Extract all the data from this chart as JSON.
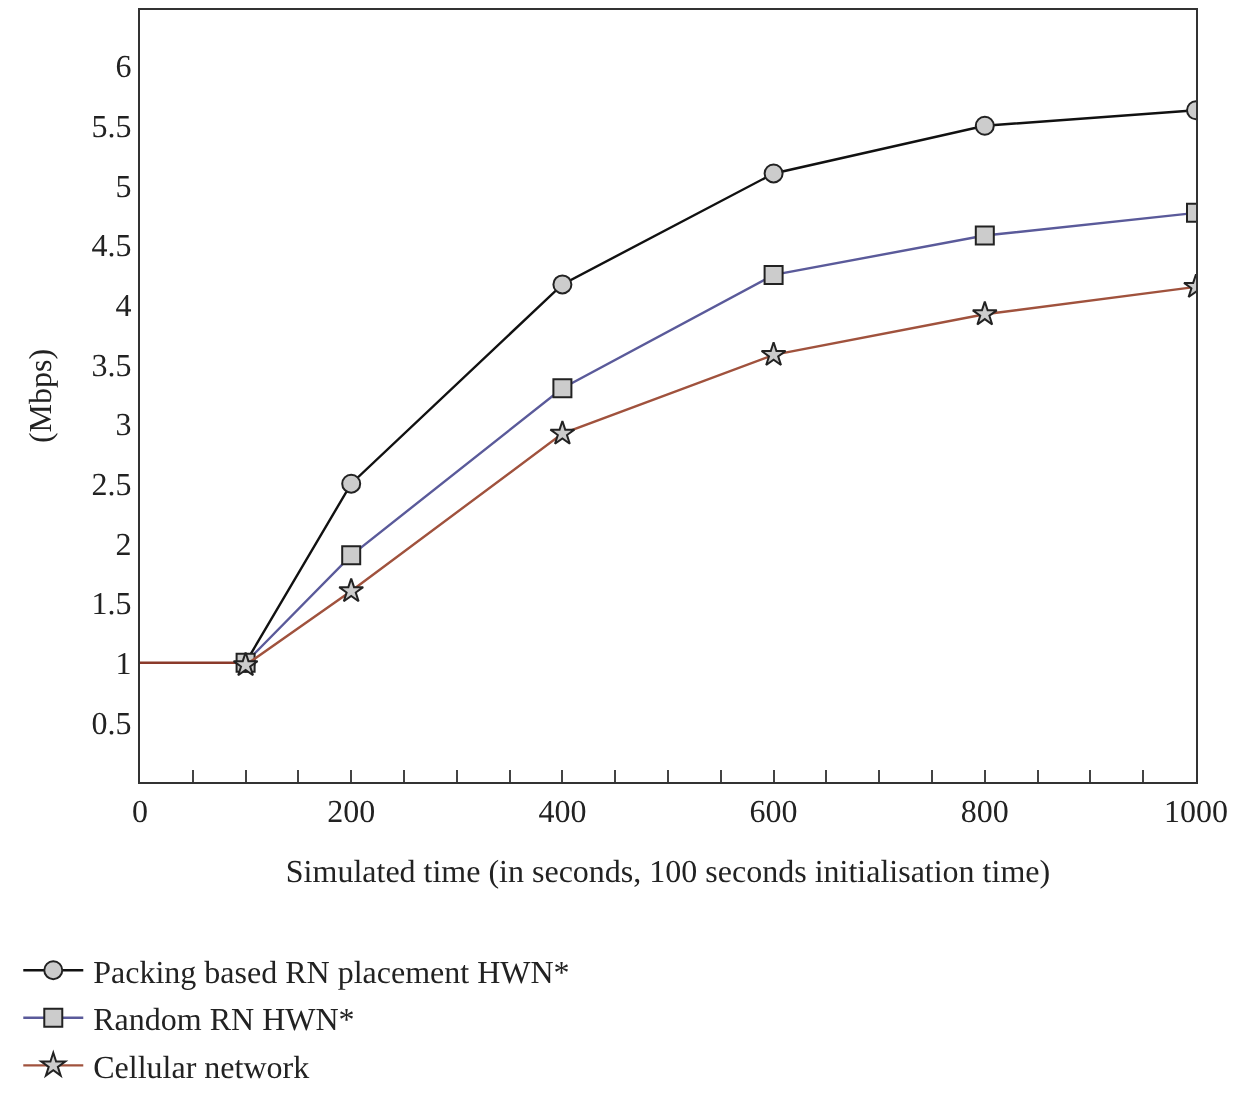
{
  "chart_data": {
    "type": "line",
    "xlabel": "Simulated time (in seconds, 100 seconds initialisation time)",
    "ylabel": "(Mbps)",
    "xlim": [
      0,
      1000
    ],
    "ylim": [
      0,
      6.47
    ],
    "xticks": [
      0,
      {
        "value": 50,
        "label": null
      },
      {
        "value": 100,
        "label": null
      },
      {
        "value": 150,
        "label": null
      },
      200,
      {
        "value": 250,
        "label": null
      },
      {
        "value": 300,
        "label": null
      },
      {
        "value": 350,
        "label": null
      },
      400,
      {
        "value": 450,
        "label": null
      },
      {
        "value": 500,
        "label": null
      },
      {
        "value": 550,
        "label": null
      },
      600,
      {
        "value": 650,
        "label": null
      },
      {
        "value": 700,
        "label": null
      },
      {
        "value": 750,
        "label": null
      },
      800,
      {
        "value": 850,
        "label": null
      },
      {
        "value": 900,
        "label": null
      },
      {
        "value": 950,
        "label": null
      },
      1000
    ],
    "yticks": [
      0.5,
      1,
      1.5,
      2,
      2.5,
      3,
      3.5,
      4,
      4.5,
      5,
      5.5,
      6
    ],
    "legend": "bottom left",
    "series": [
      {
        "color": "#8b3a2a",
        "x": [
          0,
          100
        ],
        "values": [
          1,
          1
        ]
      },
      {
        "name": "Packing based RN placement HWN*",
        "color": "#111111",
        "marker": "circle",
        "x": [
          100,
          200,
          400,
          600,
          800,
          1000
        ],
        "values": [
          1,
          2.5,
          4.17,
          5.1,
          5.5,
          5.63
        ]
      },
      {
        "name": "Random RN HWN*",
        "color": "#5a5a9a",
        "marker": "square",
        "x": [
          100,
          200,
          400,
          600,
          800,
          1000
        ],
        "values": [
          1,
          1.9,
          3.3,
          4.25,
          4.58,
          4.77
        ]
      },
      {
        "name": "Cellular network",
        "color": "#a0523d",
        "marker": "star",
        "x": [
          100,
          200,
          400,
          600,
          800,
          1000
        ],
        "values": [
          0.98,
          1.6,
          2.92,
          3.58,
          3.92,
          4.15
        ]
      }
    ]
  }
}
